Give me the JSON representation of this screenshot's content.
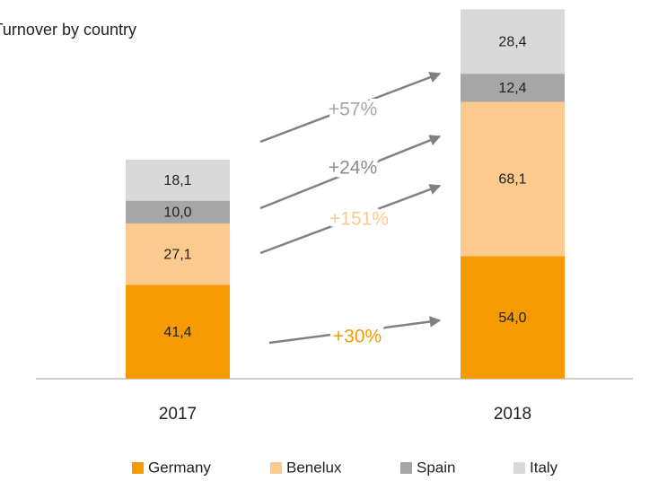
{
  "chart_data": {
    "type": "stacked_bar",
    "title": "Turnover by country",
    "categories": [
      "2017",
      "2018"
    ],
    "series": [
      {
        "name": "Germany",
        "color": "#f59a00",
        "values": [
          41.4,
          54.0
        ],
        "value_labels": [
          "41,4",
          "54,0"
        ]
      },
      {
        "name": "Benelux",
        "color": "#fcc98e",
        "values": [
          27.1,
          68.1
        ],
        "value_labels": [
          "27,1",
          "68,1"
        ]
      },
      {
        "name": "Spain",
        "color": "#a6a6a6",
        "values": [
          10.0,
          12.4
        ],
        "value_labels": [
          "10,0",
          "12,4"
        ]
      },
      {
        "name": "Italy",
        "color": "#d9d9d9",
        "values": [
          18.1,
          28.4
        ],
        "value_labels": [
          "18,1",
          "28,4"
        ]
      }
    ],
    "ylim": [
      0,
      167
    ],
    "annotations": [
      {
        "text": "+57%",
        "color": "#a6a6a6"
      },
      {
        "text": "+24%",
        "color": "#8c8c8c"
      },
      {
        "text": "+151%",
        "color": "#fcc98e"
      },
      {
        "text": "+30%",
        "color": "#f59a00"
      }
    ]
  }
}
